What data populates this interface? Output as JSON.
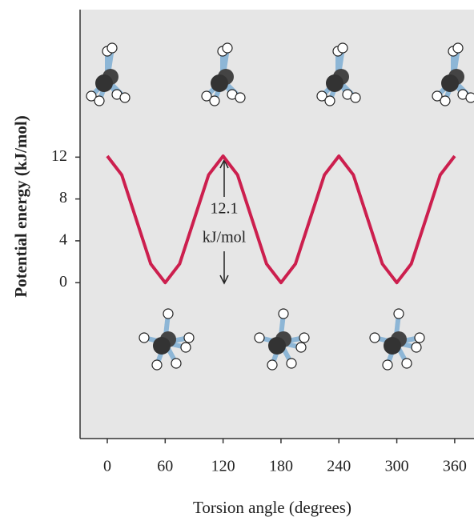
{
  "chart_data": {
    "type": "line",
    "y_label": "Potential energy (kJ/mol)",
    "x_label": "Torsion angle (degrees)",
    "annotations": [
      "12.1",
      "kJ/mol"
    ],
    "x": [
      0,
      15,
      30,
      45,
      60,
      75,
      90,
      105,
      120,
      135,
      150,
      165,
      180,
      195,
      210,
      225,
      240,
      255,
      270,
      285,
      300,
      315,
      330,
      345,
      360
    ],
    "series": [
      {
        "color": "#cc1f4e",
        "values": [
          12.1,
          10.3,
          6.05,
          1.8,
          0,
          1.8,
          6.05,
          10.3,
          12.1,
          10.3,
          6.05,
          1.8,
          0,
          1.8,
          6.05,
          10.3,
          12.1,
          10.3,
          6.05,
          1.8,
          0,
          1.8,
          6.05,
          10.3,
          12.1
        ]
      }
    ],
    "xlim": [
      -28.2,
      380
    ],
    "ylim": [
      -14.9,
      26.1
    ],
    "xticks": [
      0,
      60,
      120,
      180,
      240,
      300,
      360
    ],
    "yticks": [
      0,
      4,
      8,
      12
    ]
  }
}
